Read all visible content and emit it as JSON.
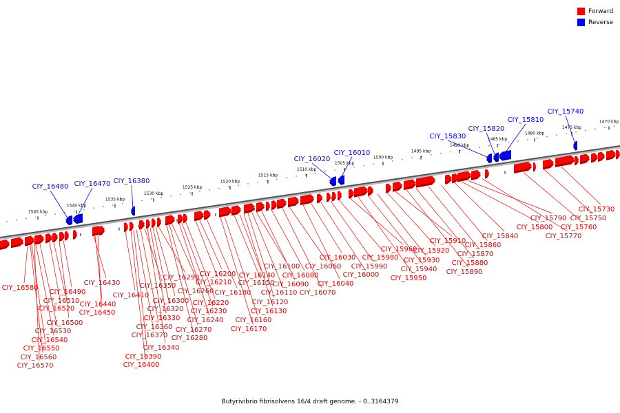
{
  "legend": {
    "forward_label": "Forward",
    "reverse_label": "Reverse",
    "forward_color": "#ff0000",
    "reverse_color": "#0000ff"
  },
  "caption": "Butyrivibrio fibrisolvens 16/4 draft genome. - 0..3164379",
  "ticks": [
    "1545 kbp",
    "1540 kbp",
    "1535 kbp",
    "1530 kbp",
    "1525 kbp",
    "1520 kbp",
    "1515 kbp",
    "1510 kbp",
    "1505 kbp",
    "1500 kbp",
    "1495 kbp",
    "1490 kbp",
    "1485 kbp",
    "1480 kbp",
    "1475 kbp",
    "1470 kbp"
  ],
  "reverse_genes": [
    "CIY_16480",
    "CIY_16470",
    "CIY_16380",
    "CIY_16020",
    "CIY_16010",
    "CIY_15830",
    "CIY_15820",
    "CIY_15810",
    "CIY_15740"
  ],
  "forward_genes": [
    "CIY_16580",
    "CIY_16570",
    "CIY_16560",
    "CIY_16550",
    "CIY_16540",
    "CIY_16530",
    "CIY_16520",
    "CIY_16510",
    "CIY_16500",
    "CIY_16490",
    "CIY_16450",
    "CIY_16440",
    "CIY_16430",
    "CIY_16410",
    "CIY_16400",
    "CIY_16390",
    "CIY_16370",
    "CIY_16360",
    "CIY_16350",
    "CIY_16340",
    "CIY_16330",
    "CIY_16320",
    "CIY_16300",
    "CIY_16290",
    "CIY_16280",
    "CIY_16270",
    "CIY_16260",
    "CIY_16240",
    "CIY_16230",
    "CIY_16220",
    "CIY_16210",
    "CIY_16200",
    "CIY_16180",
    "CIY_16170",
    "CIY_16160",
    "CIY_16150",
    "CIY_16140",
    "CIY_16130",
    "CIY_16120",
    "CIY_16110",
    "CIY_16100",
    "CIY_16090",
    "CIY_16080",
    "CIY_16070",
    "CIY_16060",
    "CIY_16040",
    "CIY_16030",
    "CIY_16000",
    "CIY_15990",
    "CIY_15980",
    "CIY_15960",
    "CIY_15950",
    "CIY_15940",
    "CIY_15930",
    "CIY_15920",
    "CIY_15910",
    "CIY_15890",
    "CIY_15880",
    "CIY_15870",
    "CIY_15860",
    "CIY_15840",
    "CIY_15800",
    "CIY_15790",
    "CIY_15770",
    "CIY_15760",
    "CIY_15750",
    "CIY_15730"
  ]
}
